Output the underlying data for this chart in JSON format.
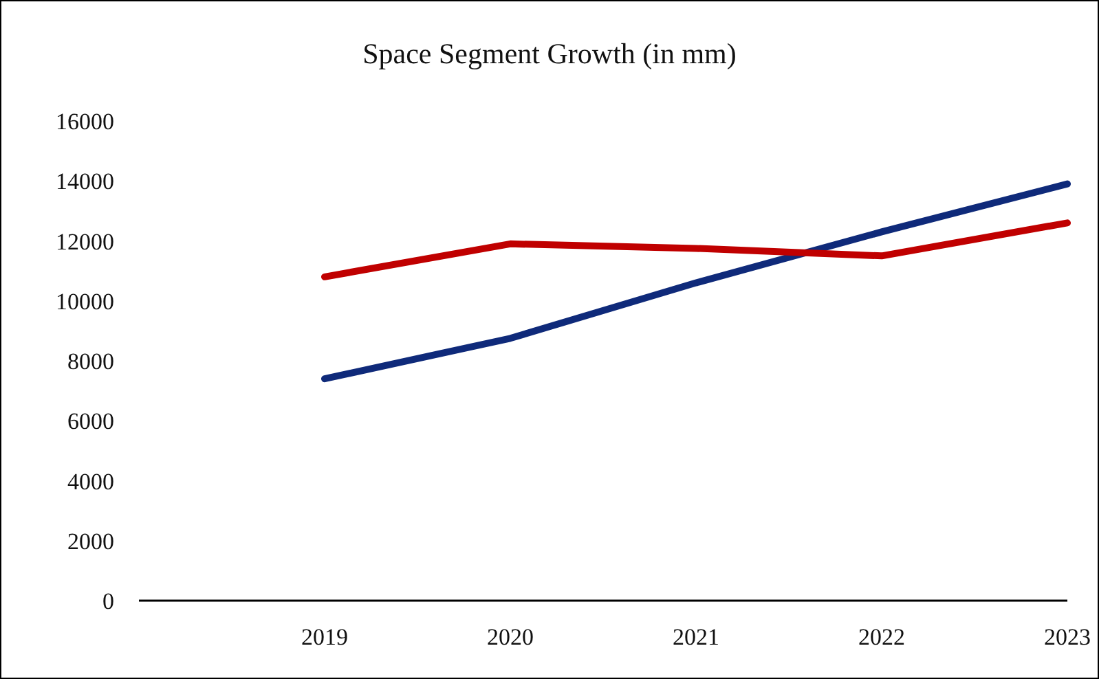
{
  "chart_data": {
    "type": "line",
    "title": "Space Segment Growth (in mm)",
    "categories": [
      null,
      "2019",
      "2020",
      "2021",
      "2022",
      "2023"
    ],
    "series": [
      {
        "color": "#0f2a7a",
        "values": [
          null,
          7400,
          8750,
          10600,
          12300,
          13900
        ]
      },
      {
        "color": "#c00000",
        "values": [
          null,
          10800,
          11900,
          11750,
          11500,
          12600
        ]
      }
    ],
    "ylim": [
      0,
      16000
    ],
    "yticks": [
      0,
      2000,
      4000,
      6000,
      8000,
      10000,
      12000,
      14000,
      16000
    ],
    "grid": false,
    "legend": false,
    "marker": "none",
    "line_style": "solid"
  }
}
